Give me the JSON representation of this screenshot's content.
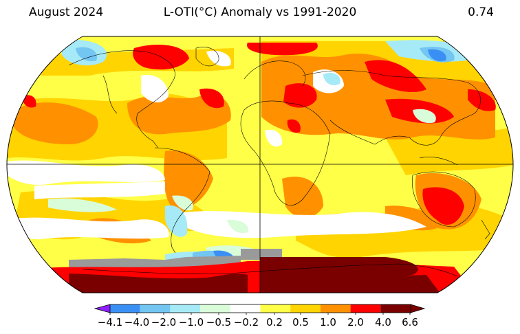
{
  "header": {
    "left": "August 2024",
    "center": "L-OTI(°C) Anomaly vs 1991-2020",
    "right": "0.74"
  },
  "colors": {
    "min_lt_4_1": "#8f1fff",
    "c_4_0": "#3a8ff5",
    "c_2_0": "#73c5f2",
    "c_1_0": "#a6eaf7",
    "c_0_5": "#d9fcd9",
    "c_0_2": "#ffffff",
    "p_0_2": "#ffff47",
    "p_0_5": "#ffd400",
    "p_1_0": "#ff9100",
    "p_2_0": "#ff0000",
    "p_4_0": "#d40000",
    "max_gt_6_6": "#7a0000",
    "missing": "#9a9a9a"
  },
  "colorbar": {
    "ticks": [
      "−4.1",
      "−4.0",
      "−2.0",
      "−1.0",
      "−0.5",
      "−0.2",
      "0.2",
      "0.5",
      "1.0",
      "2.0",
      "4.0",
      "6.6"
    ],
    "segments": [
      "#3a8ff5",
      "#73c5f2",
      "#a6eaf7",
      "#d9fcd9",
      "#ffffff",
      "#ffff47",
      "#ffd400",
      "#ff9100",
      "#ff0000",
      "#7a0000"
    ]
  }
}
